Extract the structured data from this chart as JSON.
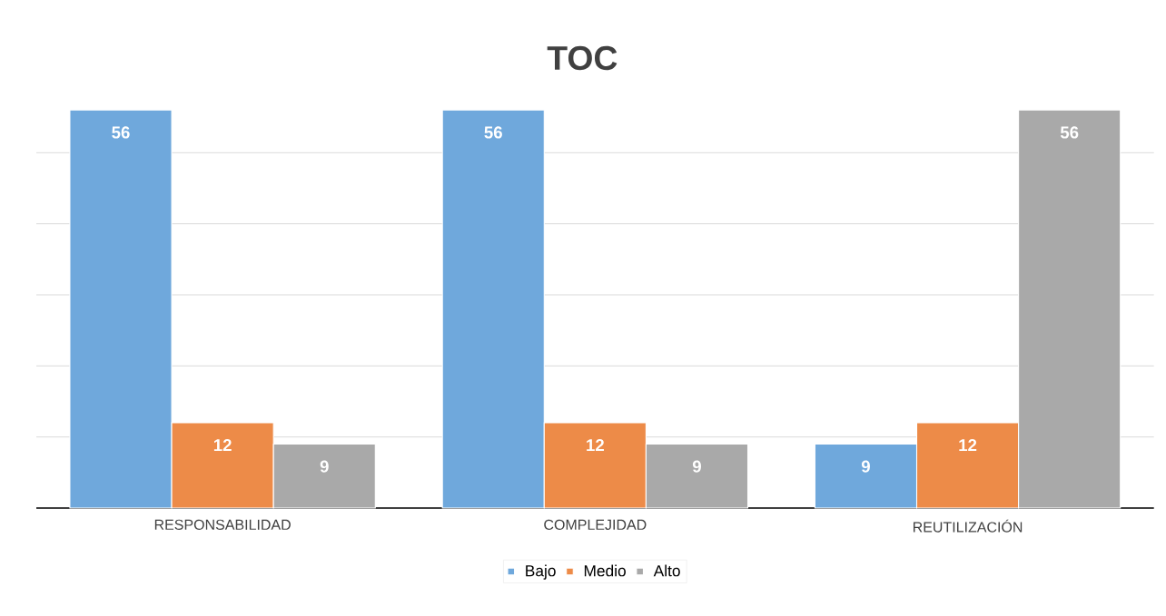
{
  "chart_data": {
    "type": "bar",
    "title": "TOC",
    "categories": [
      "RESPONSABILIDAD",
      "COMPLEJIDAD",
      "REUTILIZACIÓN"
    ],
    "series": [
      {
        "name": "Bajo",
        "color": "#6fa8dc",
        "values": [
          56,
          56,
          9
        ]
      },
      {
        "name": "Medio",
        "color": "#ed8b48",
        "values": [
          12,
          12,
          12
        ]
      },
      {
        "name": "Alto",
        "color": "#a9a9a9",
        "values": [
          9,
          9,
          56
        ]
      }
    ],
    "tick_labels": "x",
    "grid": "y",
    "legend": "bottom",
    "data_labels": true
  }
}
